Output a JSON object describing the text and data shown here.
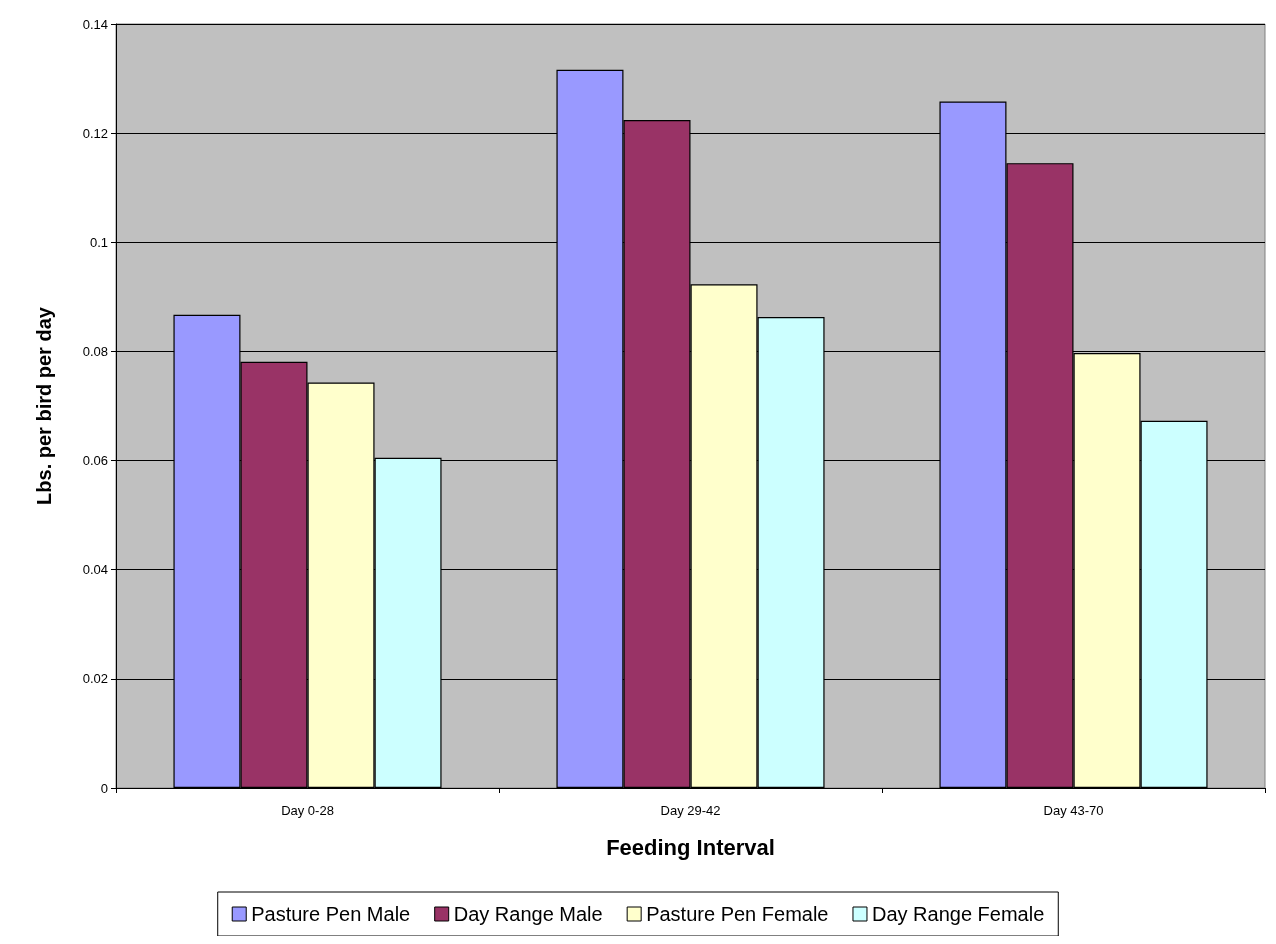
{
  "chart_data": {
    "type": "bar",
    "xlabel": "Feeding Interval",
    "ylabel": "Lbs. per bird per day",
    "categories": [
      "Day 0-28",
      "Day 29-42",
      "Day 43-70"
    ],
    "series": [
      {
        "name": "Pasture Pen Male",
        "color": "#9999ff",
        "values": [
          0.0867,
          0.1316,
          0.1258
        ]
      },
      {
        "name": "Day Range Male",
        "color": "#993366",
        "values": [
          0.0781,
          0.1224,
          0.1145
        ]
      },
      {
        "name": "Pasture Pen Female",
        "color": "#ffffcc",
        "values": [
          0.0743,
          0.0923,
          0.0797
        ]
      },
      {
        "name": "Day Range Female",
        "color": "#ccffff",
        "values": [
          0.0605,
          0.0863,
          0.0673
        ]
      }
    ],
    "ylim": [
      0,
      0.14
    ],
    "yticks": [
      0,
      0.02,
      0.04,
      0.06,
      0.08,
      0.1,
      0.12,
      0.14
    ],
    "grid": "y",
    "legend": "bottom"
  }
}
